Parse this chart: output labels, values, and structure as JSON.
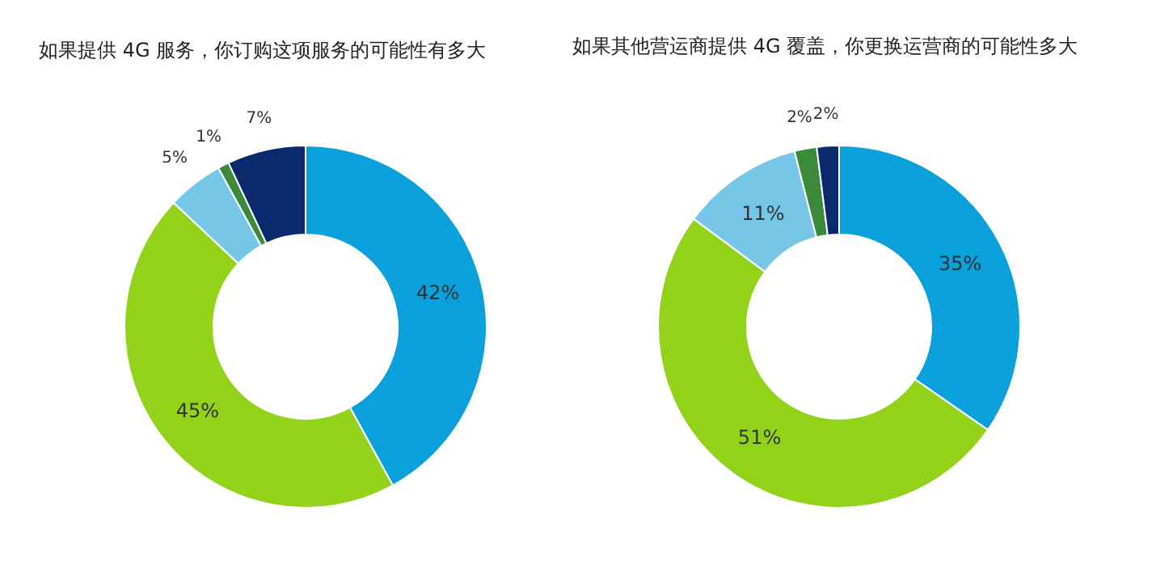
{
  "chart_data": [
    {
      "type": "donut",
      "title": "如果提供 4G 服务，你订购这项服务的可能性有多大",
      "categories": [
        null,
        null,
        null,
        null,
        null
      ],
      "values": [
        42,
        45,
        5,
        1,
        7
      ],
      "colors": [
        "#0aa0dc",
        "#92d319",
        "#76c6e8",
        "#3a8a3a",
        "#0b2a6e"
      ],
      "value_labels": [
        "42%",
        "45%",
        "5%",
        "1%",
        "7%"
      ]
    },
    {
      "type": "donut",
      "title": "如果其他营运商提供 4G 覆盖，你更换运营商的可能性多大",
      "categories": [
        null,
        null,
        null,
        null,
        null
      ],
      "values": [
        35,
        51,
        11,
        2,
        2
      ],
      "colors": [
        "#0aa0dc",
        "#92d319",
        "#76c6e8",
        "#3a8a3a",
        "#0b2a6e"
      ],
      "value_labels": [
        "35%",
        "51%",
        "11%",
        "2%",
        "2%"
      ]
    }
  ]
}
